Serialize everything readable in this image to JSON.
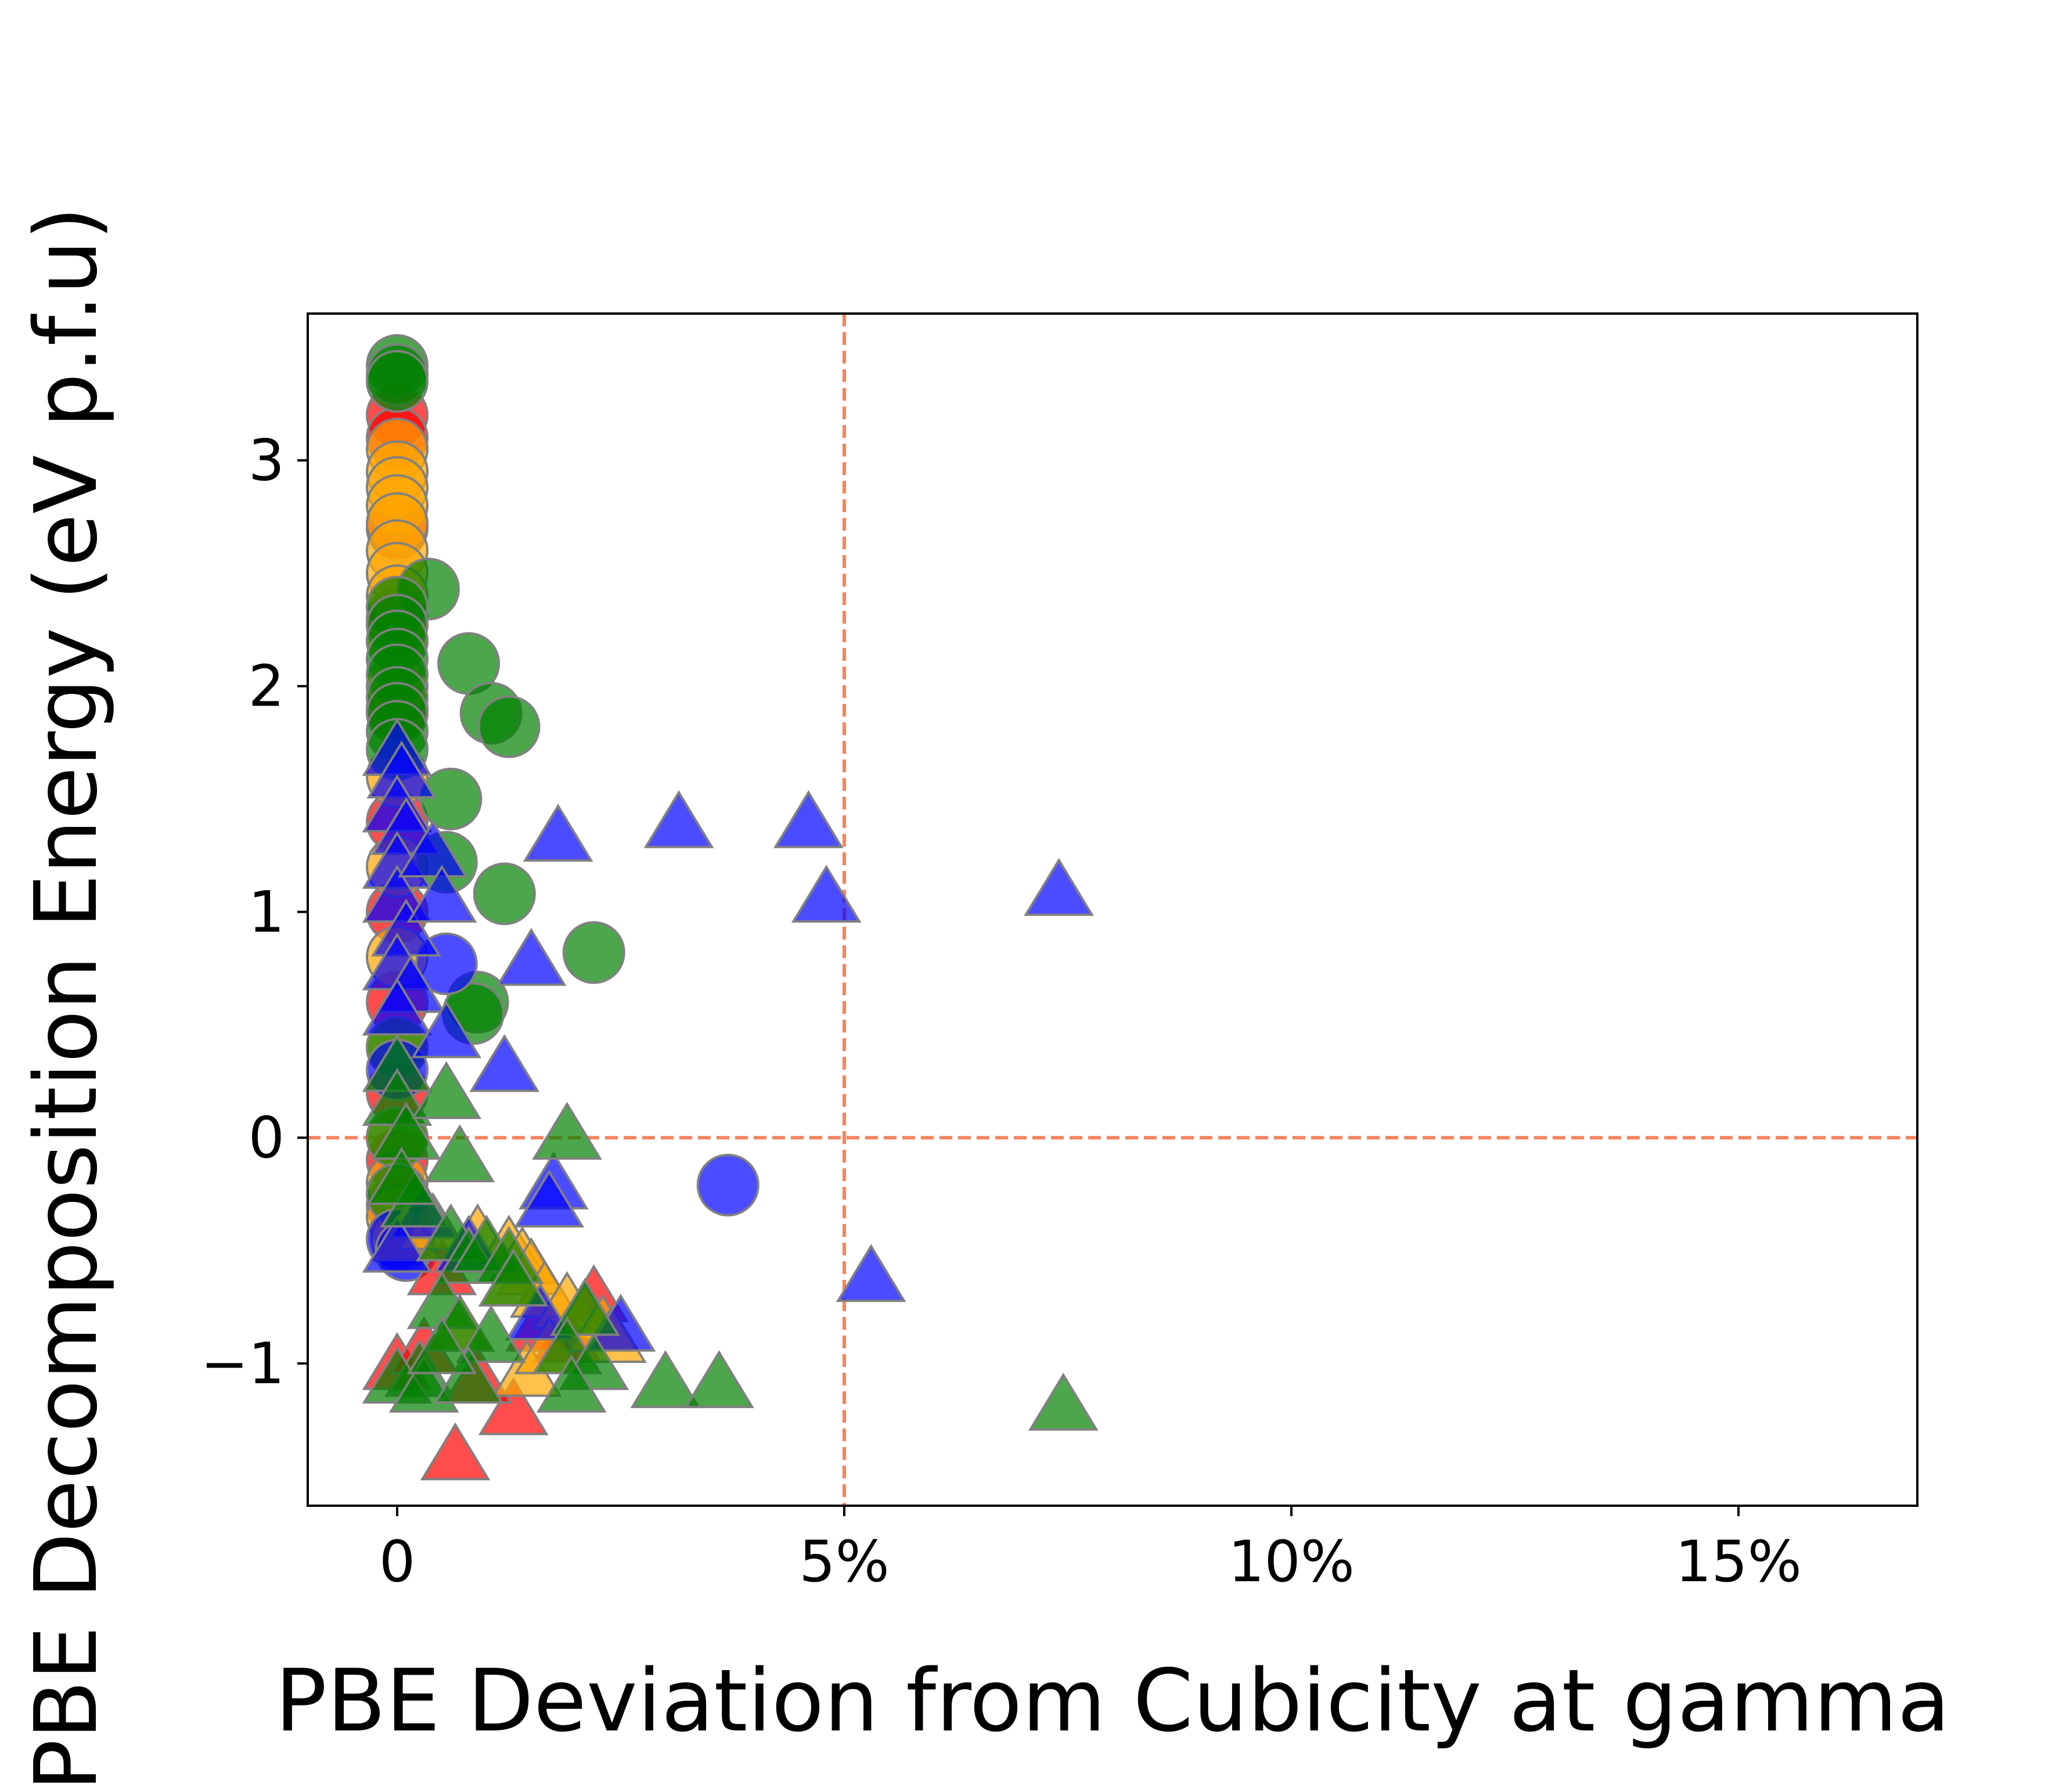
{
  "chart_data": {
    "type": "scatter",
    "xlabel": "PBE Deviation from Cubicity at gamma",
    "ylabel": "PBE Decomposition Energy (eV p.f.u)",
    "xlim": [
      -1.0,
      17.0
    ],
    "ylim": [
      -1.63,
      3.65
    ],
    "x_ticks": [
      {
        "value": 0,
        "label": "0"
      },
      {
        "value": 5,
        "label": "5%"
      },
      {
        "value": 10,
        "label": "10%"
      },
      {
        "value": 15,
        "label": "15%"
      }
    ],
    "y_ticks": [
      {
        "value": -1,
        "label": "−1"
      },
      {
        "value": 0,
        "label": "0"
      },
      {
        "value": 1,
        "label": "1"
      },
      {
        "value": 2,
        "label": "2"
      },
      {
        "value": 3,
        "label": "3"
      }
    ],
    "reference_lines": [
      {
        "orientation": "vertical",
        "value": 5,
        "color": "#f4845f",
        "style": "dashed"
      },
      {
        "orientation": "horizontal",
        "value": 0,
        "color": "#f4845f",
        "style": "dashed"
      }
    ],
    "grid": false,
    "marker_edge_color": "#808080",
    "series": [
      {
        "marker": "circle",
        "color": "#ff0000",
        "points": [
          [
            0,
            3.2
          ],
          [
            0,
            3.1
          ],
          [
            0,
            2.7
          ],
          [
            0,
            2.3
          ],
          [
            0,
            1.9
          ],
          [
            0,
            1.4
          ],
          [
            0,
            1.0
          ],
          [
            0,
            0.6
          ],
          [
            0,
            0.2
          ],
          [
            0,
            -0.1
          ],
          [
            0,
            -0.3
          ]
        ]
      },
      {
        "marker": "circle",
        "color": "#ffa500",
        "points": [
          [
            0,
            3.05
          ],
          [
            0,
            2.95
          ],
          [
            0,
            2.88
          ],
          [
            0,
            2.8
          ],
          [
            0,
            2.72
          ],
          [
            0,
            2.6
          ],
          [
            0,
            2.5
          ],
          [
            0,
            2.4
          ],
          [
            0,
            2.2
          ],
          [
            0,
            2.0
          ],
          [
            0,
            1.6
          ],
          [
            0,
            1.2
          ],
          [
            0,
            0.8
          ],
          [
            0,
            0.4
          ],
          [
            0,
            0.0
          ],
          [
            0,
            -0.2
          ],
          [
            0,
            -0.35
          ],
          [
            0.05,
            -0.45
          ]
        ]
      },
      {
        "marker": "circle",
        "color": "#008000",
        "points": [
          [
            0,
            3.42
          ],
          [
            0,
            3.38
          ],
          [
            0,
            3.35
          ],
          [
            0.35,
            2.43
          ],
          [
            0,
            2.35
          ],
          [
            0,
            2.27
          ],
          [
            0,
            2.2
          ],
          [
            0,
            2.12
          ],
          [
            0,
            2.05
          ],
          [
            0,
            1.95
          ],
          [
            0,
            1.88
          ],
          [
            0,
            1.8
          ],
          [
            0,
            1.72
          ],
          [
            0.8,
            2.1
          ],
          [
            1.05,
            1.88
          ],
          [
            1.25,
            1.82
          ],
          [
            0.6,
            1.5
          ],
          [
            0.55,
            1.22
          ],
          [
            1.2,
            1.08
          ],
          [
            2.2,
            0.82
          ],
          [
            0.9,
            0.6
          ],
          [
            0.85,
            0.55
          ],
          [
            0,
            0.4
          ],
          [
            0,
            0.0
          ],
          [
            0,
            -0.25
          ]
        ]
      },
      {
        "marker": "circle",
        "color": "#0000ff",
        "points": [
          [
            0.55,
            0.77
          ],
          [
            3.7,
            -0.21
          ],
          [
            0,
            0.3
          ],
          [
            0,
            -0.45
          ],
          [
            0.1,
            -0.5
          ]
        ]
      },
      {
        "marker": "triangle",
        "color": "#ff0000",
        "points": [
          [
            0.65,
            -1.42
          ],
          [
            1.3,
            -1.22
          ],
          [
            0.9,
            -1.08
          ],
          [
            0,
            -1.02
          ],
          [
            1.9,
            -0.9
          ],
          [
            2.2,
            -0.72
          ],
          [
            0.3,
            -0.95
          ],
          [
            1.6,
            -0.85
          ],
          [
            0.5,
            -0.6
          ]
        ]
      },
      {
        "marker": "triangle",
        "color": "#ffa500",
        "points": [
          [
            0.9,
            -0.45
          ],
          [
            1.25,
            -0.5
          ],
          [
            1.4,
            -0.55
          ],
          [
            1.5,
            -0.6
          ],
          [
            1.65,
            -0.7
          ],
          [
            1.9,
            -0.75
          ],
          [
            2.1,
            -0.8
          ],
          [
            2.3,
            -0.85
          ],
          [
            1.3,
            -0.65
          ],
          [
            1.45,
            -1.05
          ],
          [
            1.7,
            -0.95
          ],
          [
            0.1,
            -0.45
          ],
          [
            0.4,
            -0.4
          ],
          [
            0.7,
            -0.85
          ],
          [
            2.4,
            -0.9
          ]
        ]
      },
      {
        "marker": "triangle",
        "color": "#0000ff",
        "points": [
          [
            0,
            1.7
          ],
          [
            0.05,
            1.6
          ],
          [
            0,
            1.45
          ],
          [
            0.1,
            1.35
          ],
          [
            0,
            1.2
          ],
          [
            0,
            1.05
          ],
          [
            0.1,
            0.9
          ],
          [
            0,
            0.75
          ],
          [
            0.15,
            0.65
          ],
          [
            0,
            0.55
          ],
          [
            0.4,
            1.25
          ],
          [
            0.5,
            1.05
          ],
          [
            1.8,
            1.32
          ],
          [
            3.15,
            1.38
          ],
          [
            4.6,
            1.38
          ],
          [
            4.8,
            1.05
          ],
          [
            7.4,
            1.08
          ],
          [
            1.5,
            0.77
          ],
          [
            1.2,
            0.3
          ],
          [
            0.55,
            0.45
          ],
          [
            1.75,
            -0.22
          ],
          [
            1.7,
            -0.3
          ],
          [
            5.3,
            -0.63
          ],
          [
            2.5,
            -0.85
          ],
          [
            1.6,
            -0.8
          ],
          [
            0.8,
            -0.5
          ],
          [
            0.3,
            -0.35
          ],
          [
            0,
            -0.5
          ]
        ]
      },
      {
        "marker": "triangle",
        "color": "#008000",
        "points": [
          [
            0,
            0.3
          ],
          [
            0,
            0.15
          ],
          [
            0.1,
            0.0
          ],
          [
            0.55,
            0.18
          ],
          [
            0.7,
            -0.1
          ],
          [
            1.9,
            0.0
          ],
          [
            0.2,
            -0.3
          ],
          [
            0.6,
            -0.45
          ],
          [
            0.8,
            -0.55
          ],
          [
            1.0,
            -0.5
          ],
          [
            1.25,
            -0.55
          ],
          [
            1.3,
            -0.65
          ],
          [
            0.5,
            -0.75
          ],
          [
            0.7,
            -0.85
          ],
          [
            1.05,
            -0.9
          ],
          [
            2.1,
            -0.78
          ],
          [
            1.9,
            -0.95
          ],
          [
            2.2,
            -1.02
          ],
          [
            1.95,
            -1.12
          ],
          [
            3.0,
            -1.1
          ],
          [
            3.6,
            -1.1
          ],
          [
            7.45,
            -1.2
          ],
          [
            0.25,
            -1.05
          ],
          [
            0,
            -1.08
          ],
          [
            0.3,
            -1.12
          ],
          [
            0.8,
            -1.08
          ],
          [
            0.5,
            -0.95
          ],
          [
            0.05,
            -0.2
          ]
        ]
      }
    ]
  }
}
